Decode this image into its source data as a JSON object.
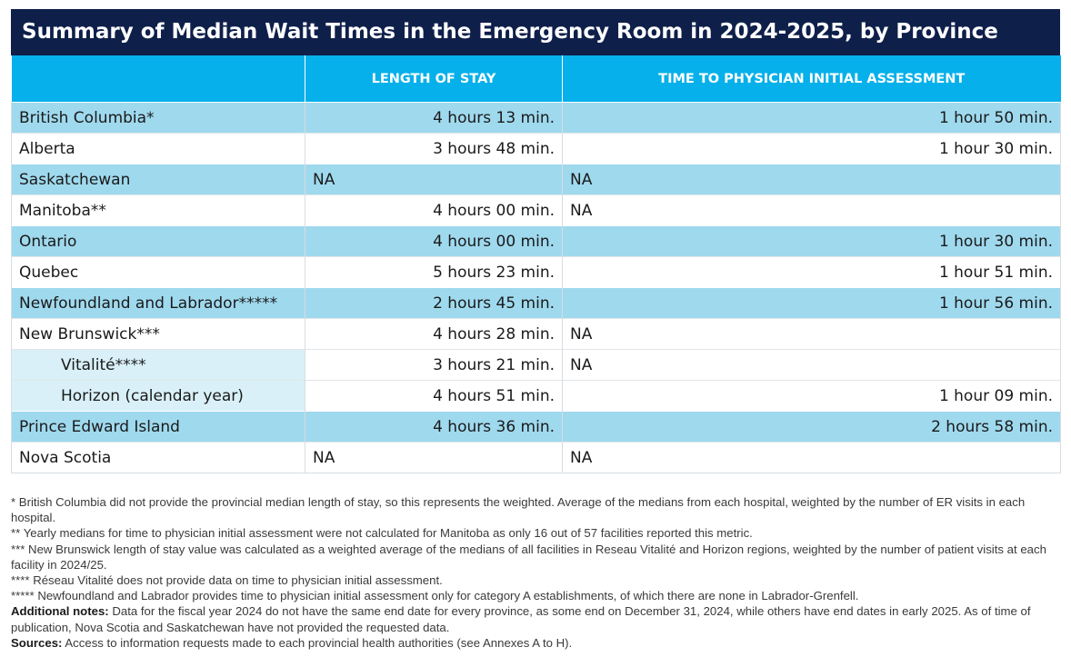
{
  "title": "Summary of Median Wait Times in the Emergency Room in 2024-2025, by Province",
  "colors": {
    "title_bg": "#0e1f4a",
    "header_bg": "#06b0ea",
    "shaded_row": "#9fd9ee",
    "sub_row": "#d9f0f8"
  },
  "chart_data": {
    "type": "table",
    "title": "Summary of Median Wait Times in the Emergency Room in 2024-2025, by Province",
    "columns": [
      "",
      "LENGTH OF STAY",
      "TIME TO PHYSICIAN INITIAL ASSESSMENT"
    ],
    "rows": [
      {
        "name": "British Columbia*",
        "stay": "4 hours 13 min.",
        "assess": "1 hour 50 min.",
        "style": "shade"
      },
      {
        "name": "Alberta",
        "stay": "3 hours 48 min.",
        "assess": "1 hour 30 min.",
        "style": "plain"
      },
      {
        "name": "Saskatchewan",
        "stay": "NA",
        "assess": "NA",
        "style": "shade"
      },
      {
        "name": "Manitoba**",
        "stay": "4 hours 00 min.",
        "assess": "NA",
        "style": "plain"
      },
      {
        "name": "Ontario",
        "stay": "4 hours 00 min.",
        "assess": "1 hour 30 min.",
        "style": "shade"
      },
      {
        "name": "Quebec",
        "stay": "5 hours 23 min.",
        "assess": "1 hour 51 min.",
        "style": "plain"
      },
      {
        "name": "Newfoundland and Labrador*****",
        "stay": "2 hours 45 min.",
        "assess": "1 hour 56 min.",
        "style": "shade"
      },
      {
        "name": "New Brunswick***",
        "stay": "4 hours 28 min.",
        "assess": "NA",
        "style": "plain"
      },
      {
        "name": "Vitalité****",
        "stay": "3 hours 21 min.",
        "assess": "NA",
        "style": "sub"
      },
      {
        "name": "Horizon (calendar year)",
        "stay": "4 hours 51 min.",
        "assess": "1 hour 09 min.",
        "style": "sub"
      },
      {
        "name": "Prince Edward Island",
        "stay": "4 hours 36 min.",
        "assess": "2 hours 58 min.",
        "style": "shade"
      },
      {
        "name": "Nova Scotia",
        "stay": "NA",
        "assess": "NA",
        "style": "plain"
      }
    ]
  },
  "footnotes": [
    "* British Columbia did not provide the provincial median length of stay, so this represents the weighted. Average of the medians from each hospital, weighted by the number of ER visits in each hospital.",
    "** Yearly medians for time to physician initial assessment were not calculated for Manitoba as only 16 out of 57 facilities reported this metric.",
    "*** New Brunswick length of stay value was calculated as a weighted average of the medians of all facilities in Reseau Vitalité and Horizon regions, weighted by the number of patient visits at each facility in 2024/25.",
    "**** Réseau Vitalité does not provide data on time to physician initial assessment.",
    "***** Newfoundland and Labrador provides time to physician initial assessment only for category A establishments, of which there are none in Labrador-Grenfell."
  ],
  "additional_notes": {
    "label": "Additional notes:",
    "text": " Data for the fiscal year 2024 do not have the same end date for every province, as some end on December 31, 2024, while others have end dates in early 2025. As of time of publication, Nova Scotia and Saskatchewan have not provided the requested data."
  },
  "sources": {
    "label": "Sources:",
    "text": " Access to information requests made to each provincial health authorities (see Annexes A to H)."
  }
}
